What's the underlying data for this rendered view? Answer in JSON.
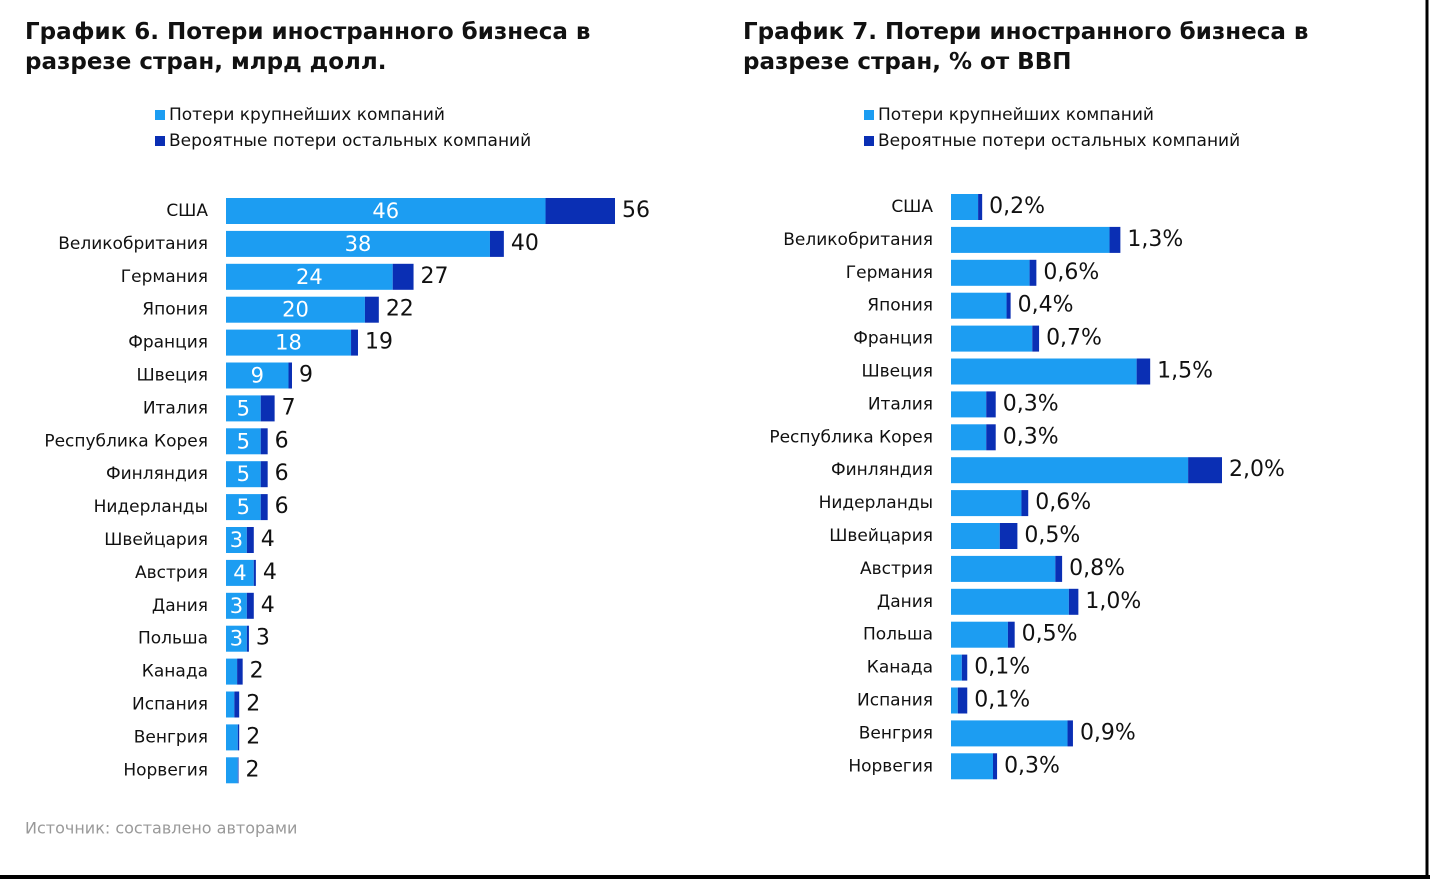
{
  "chart_data": [
    {
      "type": "bar",
      "title": "График 6. Потери иностранного бизнеса в разрезе стран, млрд долл.",
      "categories": [
        "США",
        "Великобритания",
        "Германия",
        "Япония",
        "Франция",
        "Швеция",
        "Италия",
        "Республика Корея",
        "Финляндия",
        "Нидерланды",
        "Швейцария",
        "Австрия",
        "Дания",
        "Польша",
        "Канада",
        "Испания",
        "Венгрия",
        "Норвегия"
      ],
      "series": [
        {
          "name": "Потери крупнейших компаний",
          "color": "#1c9df2",
          "values": [
            46,
            38,
            24,
            20,
            18,
            9,
            5,
            5,
            5,
            5,
            3,
            4,
            3,
            3,
            1.6,
            1.2,
            1.7,
            1.7
          ],
          "value_labels": [
            "46",
            "38",
            "24",
            "20",
            "18",
            "9",
            "5",
            "5",
            "5",
            "5",
            "3",
            "4",
            "3",
            "3",
            null,
            null,
            null,
            null
          ]
        },
        {
          "name": "Вероятные потери остальных компаний",
          "color": "#0a2fb4",
          "values": [
            10,
            2,
            3,
            2,
            1,
            0.5,
            2,
            1,
            1,
            1,
            1,
            0.3,
            1,
            0.3,
            0.8,
            0.7,
            0.2,
            0.1
          ]
        }
      ],
      "totals": [
        56,
        40,
        27,
        22,
        19,
        9,
        7,
        6,
        6,
        6,
        4,
        4,
        4,
        3,
        2,
        2,
        2,
        2
      ],
      "xlim": [
        0,
        56
      ]
    },
    {
      "type": "bar",
      "title": "График 7. Потери иностранного бизнеса в разрезе стран, % от ВВП",
      "categories": [
        "США",
        "Великобритания",
        "Германия",
        "Япония",
        "Франция",
        "Швеция",
        "Италия",
        "Республика Корея",
        "Финляндия",
        "Нидерланды",
        "Швейцария",
        "Австрия",
        "Дания",
        "Польша",
        "Канада",
        "Испания",
        "Венгрия",
        "Норвегия"
      ],
      "series": [
        {
          "name": "Потери крупнейших компаний",
          "color": "#1c9df2",
          "values": [
            0.2,
            1.17,
            0.58,
            0.41,
            0.6,
            1.37,
            0.26,
            0.26,
            1.75,
            0.52,
            0.36,
            0.77,
            0.87,
            0.42,
            0.08,
            0.05,
            0.86,
            0.31
          ]
        },
        {
          "name": "Вероятные потери остальных компаний",
          "color": "#0a2fb4",
          "values": [
            0.03,
            0.08,
            0.05,
            0.03,
            0.05,
            0.1,
            0.07,
            0.07,
            0.25,
            0.05,
            0.13,
            0.05,
            0.07,
            0.05,
            0.04,
            0.07,
            0.04,
            0.03
          ]
        }
      ],
      "total_labels": [
        "0,2%",
        "1,3%",
        "0,6%",
        "0,4%",
        "0,7%",
        "1,5%",
        "0,3%",
        "0,3%",
        "2,0%",
        "0,6%",
        "0,5%",
        "0,8%",
        "1,0%",
        "0,5%",
        "0,1%",
        "0,1%",
        "0,9%",
        "0,3%"
      ],
      "xlim": [
        0,
        2
      ]
    }
  ],
  "source": "Источник: составлено авторами"
}
